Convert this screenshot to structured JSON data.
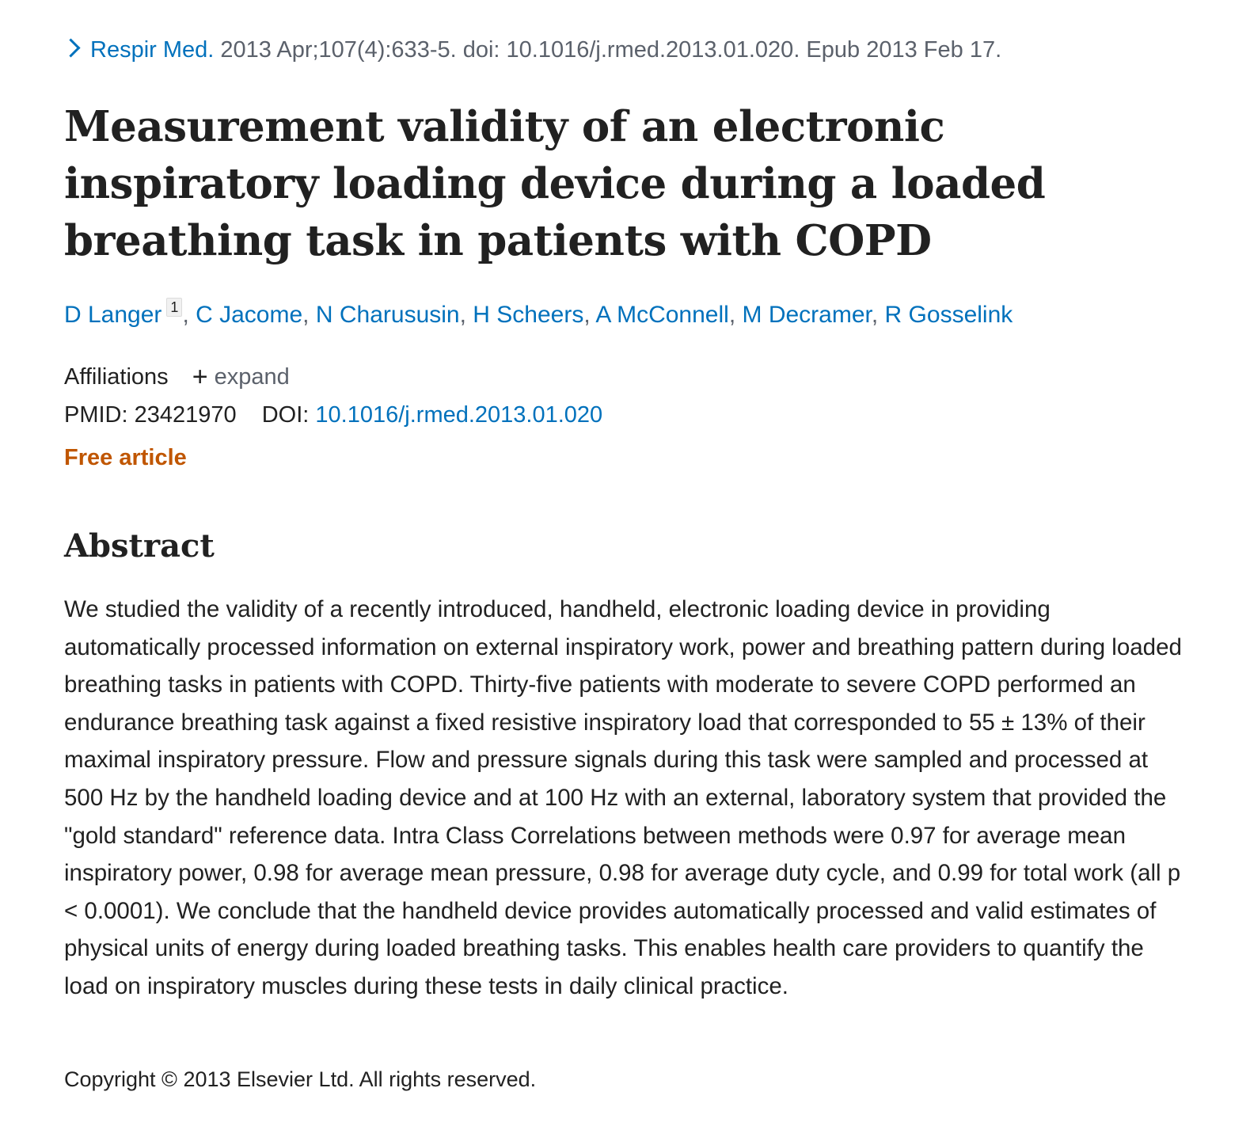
{
  "citation": {
    "journal": "Respir Med.",
    "details": "2013 Apr;107(4):633-5. doi: 10.1016/j.rmed.2013.01.020. Epub 2013 Feb 17."
  },
  "title": "Measurement validity of an electronic inspiratory loading device during a loaded breathing task in patients with COPD",
  "authors": [
    {
      "name": "D Langer",
      "affiliation_ref": "1"
    },
    {
      "name": "C Jacome"
    },
    {
      "name": "N Charususin"
    },
    {
      "name": "H Scheers"
    },
    {
      "name": "A McConnell"
    },
    {
      "name": "M Decramer"
    },
    {
      "name": "R Gosselink"
    }
  ],
  "separator": ",",
  "affiliations": {
    "label": "Affiliations",
    "expand_icon": "plus-icon",
    "expand_label": "expand"
  },
  "identifiers": {
    "pmid_label": "PMID:",
    "pmid": "23421970",
    "doi_label": "DOI:",
    "doi": "10.1016/j.rmed.2013.01.020"
  },
  "free_article": "Free article",
  "abstract": {
    "heading": "Abstract",
    "text": "We studied the validity of a recently introduced, handheld, electronic loading device in providing automatically processed information on external inspiratory work, power and breathing pattern during loaded breathing tasks in patients with COPD. Thirty-five patients with moderate to severe COPD performed an endurance breathing task against a fixed resistive inspiratory load that corresponded to 55 ± 13% of their maximal inspiratory pressure. Flow and pressure signals during this task were sampled and processed at 500 Hz by the handheld loading device and at 100 Hz with an external, laboratory system that provided the \"gold standard\" reference data. Intra Class Correlations between methods were 0.97 for average mean inspiratory power, 0.98 for average mean pressure, 0.98 for average duty cycle, and 0.99 for total work (all p < 0.0001). We conclude that the handheld device provides automatically processed and valid estimates of physical units of energy during loaded breathing tasks. This enables health care providers to quantify the load on inspiratory muscles during these tests in daily clinical practice."
  },
  "copyright": "Copyright © 2013 Elsevier Ltd. All rights reserved.",
  "colors": {
    "link": "#0071bc",
    "free_article": "#c05600",
    "text": "#212121",
    "muted": "#5b616b"
  }
}
